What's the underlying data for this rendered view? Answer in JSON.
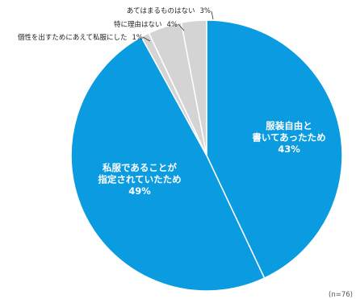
{
  "chart_data": {
    "type": "pie",
    "slices": [
      {
        "label_lines": [
          "服装自由と",
          "書いてあったため"
        ],
        "value": 43,
        "value_text": "43%",
        "color": "#0a9be0",
        "label_position": "inside"
      },
      {
        "label_lines": [
          "私服であることが",
          "指定されていたため"
        ],
        "value": 49,
        "value_text": "49%",
        "color": "#0a9be0",
        "label_position": "inside"
      },
      {
        "label_lines": [
          "個性を出すためにあえて私服にした"
        ],
        "value": 1,
        "value_text": "1%",
        "color": "#d4d4d4",
        "label_position": "outside"
      },
      {
        "label_lines": [
          "特に理由はない"
        ],
        "value": 4,
        "value_text": "4%",
        "color": "#d4d4d4",
        "label_position": "outside"
      },
      {
        "label_lines": [
          "あてはまるものはない"
        ],
        "value": 3,
        "value_text": "3%",
        "color": "#d4d4d4",
        "label_position": "outside"
      }
    ],
    "start": "top",
    "direction": "clockwise",
    "note": "(n=76)"
  }
}
